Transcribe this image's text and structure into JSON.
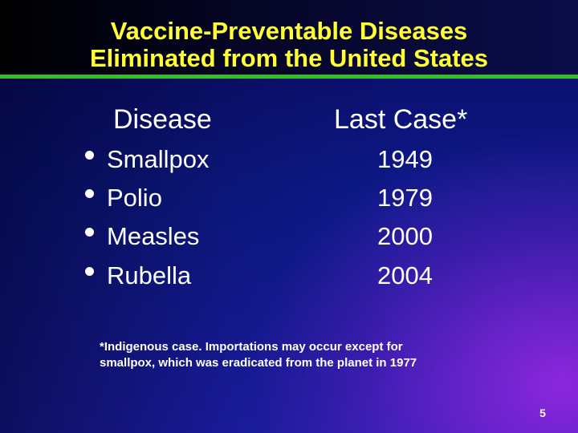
{
  "slide": {
    "title_line1": "Vaccine-Preventable Diseases",
    "title_line2": "Eliminated from the United States",
    "column_headers": {
      "disease": "Disease",
      "last_case": "Last Case*"
    },
    "rows": [
      {
        "disease": "Smallpox",
        "year": "1949"
      },
      {
        "disease": "Polio",
        "year": "1979"
      },
      {
        "disease": "Measles",
        "year": "2000"
      },
      {
        "disease": "Rubella",
        "year": "2004"
      }
    ],
    "footnote_line1": "*Indigenous case. Importations may occur except for",
    "footnote_line2": "smallpox, which was eradicated from the planet in 1977",
    "page_number": "5"
  },
  "colors": {
    "title": "#ffff33",
    "title_rule": "#2fc02f",
    "background_top": "#0a0a5e",
    "background_bottom": "#1e1fae",
    "background_glow": "#a028e6",
    "text": "#ffffff"
  }
}
